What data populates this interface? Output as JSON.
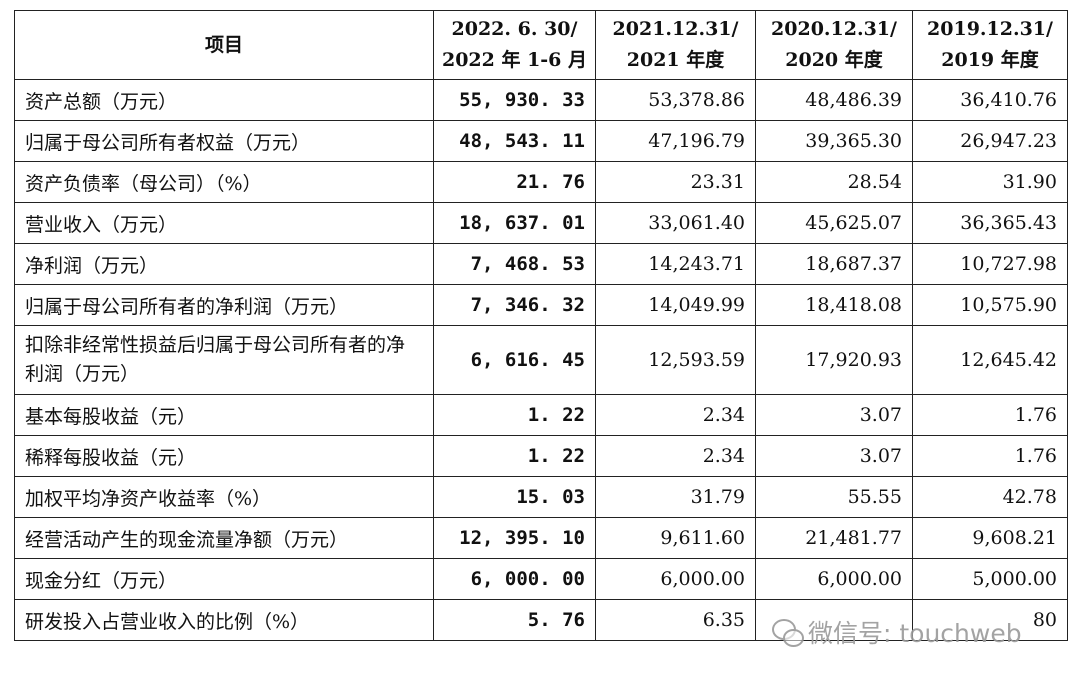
{
  "table": {
    "header": {
      "item": "项目",
      "col1_line1": "2022. 6. 30/",
      "col1_line2": "2022 年 1-6 月",
      "col2_line1": "2021.12.31/",
      "col2_line2": "2021 年度",
      "col3_line1": "2020.12.31/",
      "col3_line2": "2020 年度",
      "col4_line1": "2019.12.31/",
      "col4_line2": "2019 年度"
    },
    "rows": [
      {
        "label": "资产总额（万元）",
        "v1": "55, 930. 33",
        "v2": "53,378.86",
        "v3": "48,486.39",
        "v4": "36,410.76"
      },
      {
        "label": "归属于母公司所有者权益（万元）",
        "v1": "48, 543. 11",
        "v2": "47,196.79",
        "v3": "39,365.30",
        "v4": "26,947.23"
      },
      {
        "label": "资产负债率（母公司）（%）",
        "v1": "21. 76",
        "v2": "23.31",
        "v3": "28.54",
        "v4": "31.90"
      },
      {
        "label": "营业收入（万元）",
        "v1": "18, 637. 01",
        "v2": "33,061.40",
        "v3": "45,625.07",
        "v4": "36,365.43"
      },
      {
        "label": "净利润（万元）",
        "v1": "7, 468. 53",
        "v2": "14,243.71",
        "v3": "18,687.37",
        "v4": "10,727.98"
      },
      {
        "label": "归属于母公司所有者的净利润（万元）",
        "v1": "7, 346. 32",
        "v2": "14,049.99",
        "v3": "18,418.08",
        "v4": "10,575.90"
      },
      {
        "label": "扣除非经常性损益后归属于母公司所有者的净利润（万元）",
        "v1": "6, 616. 45",
        "v2": "12,593.59",
        "v3": "17,920.93",
        "v4": "12,645.42"
      },
      {
        "label": "基本每股收益（元）",
        "v1": "1. 22",
        "v2": "2.34",
        "v3": "3.07",
        "v4": "1.76"
      },
      {
        "label": "稀释每股收益（元）",
        "v1": "1. 22",
        "v2": "2.34",
        "v3": "3.07",
        "v4": "1.76"
      },
      {
        "label": "加权平均净资产收益率（%）",
        "v1": "15. 03",
        "v2": "31.79",
        "v3": "55.55",
        "v4": "42.78"
      },
      {
        "label": "经营活动产生的现金流量净额（万元）",
        "v1": "12, 395. 10",
        "v2": "9,611.60",
        "v3": "21,481.77",
        "v4": "9,608.21"
      },
      {
        "label": "现金分红（万元）",
        "v1": "6, 000. 00",
        "v2": "6,000.00",
        "v3": "6,000.00",
        "v4": "5,000.00"
      },
      {
        "label": "研发投入占营业收入的比例（%）",
        "v1": "5. 76",
        "v2": "6.35",
        "v3": "",
        "v4": "80"
      }
    ]
  },
  "watermark": {
    "text": "微信号: touchweb",
    "icon": "wechat-icon"
  }
}
